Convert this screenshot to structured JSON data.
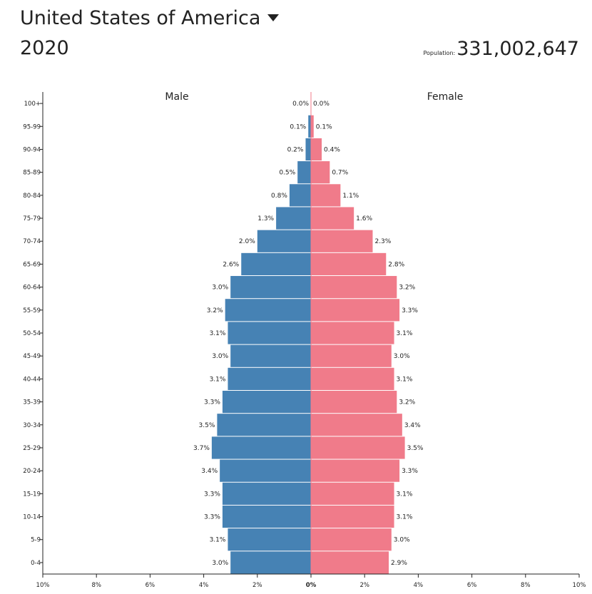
{
  "header": {
    "country": "United States of America",
    "year": "2020",
    "population_label": "Population:",
    "population_value": "331,002,647"
  },
  "chart_data": {
    "type": "bar",
    "orientation": "horizontal",
    "title": "",
    "left_label": "Male",
    "right_label": "Female",
    "categories": [
      "100+",
      "95-99",
      "90-94",
      "85-89",
      "80-84",
      "75-79",
      "70-74",
      "65-69",
      "60-64",
      "55-59",
      "50-54",
      "45-49",
      "40-44",
      "35-39",
      "30-34",
      "25-29",
      "20-24",
      "15-19",
      "10-14",
      "5-9",
      "0-4"
    ],
    "series": [
      {
        "name": "Male",
        "color": "#4682b4",
        "values": [
          0.0,
          0.1,
          0.2,
          0.5,
          0.8,
          1.3,
          2.0,
          2.6,
          3.0,
          3.2,
          3.1,
          3.0,
          3.1,
          3.3,
          3.5,
          3.7,
          3.4,
          3.3,
          3.3,
          3.1,
          3.0
        ],
        "labels": [
          "0.0%",
          "0.1%",
          "0.2%",
          "0.5%",
          "0.8%",
          "1.3%",
          "2.0%",
          "2.6%",
          "3.0%",
          "3.2%",
          "3.1%",
          "3.0%",
          "3.1%",
          "3.3%",
          "3.5%",
          "3.7%",
          "3.4%",
          "3.3%",
          "3.3%",
          "3.1%",
          "3.0%"
        ]
      },
      {
        "name": "Female",
        "color": "#f07b8a",
        "values": [
          0.0,
          0.1,
          0.4,
          0.7,
          1.1,
          1.6,
          2.3,
          2.8,
          3.2,
          3.3,
          3.1,
          3.0,
          3.1,
          3.2,
          3.4,
          3.5,
          3.3,
          3.1,
          3.1,
          3.0,
          2.9
        ],
        "labels": [
          "0.0%",
          "0.1%",
          "0.4%",
          "0.7%",
          "1.1%",
          "1.6%",
          "2.3%",
          "2.8%",
          "3.2%",
          "3.3%",
          "3.1%",
          "3.0%",
          "3.1%",
          "3.2%",
          "3.4%",
          "3.5%",
          "3.3%",
          "3.1%",
          "3.1%",
          "3.0%",
          "2.9%"
        ]
      }
    ],
    "xlim": [
      -10,
      10
    ],
    "x_ticks": [
      "10%",
      "8%",
      "6%",
      "4%",
      "2%",
      "0%",
      "2%",
      "4%",
      "6%",
      "8%",
      "10%"
    ],
    "xlabel": "",
    "ylabel": "",
    "grid": false,
    "legend": "none"
  }
}
